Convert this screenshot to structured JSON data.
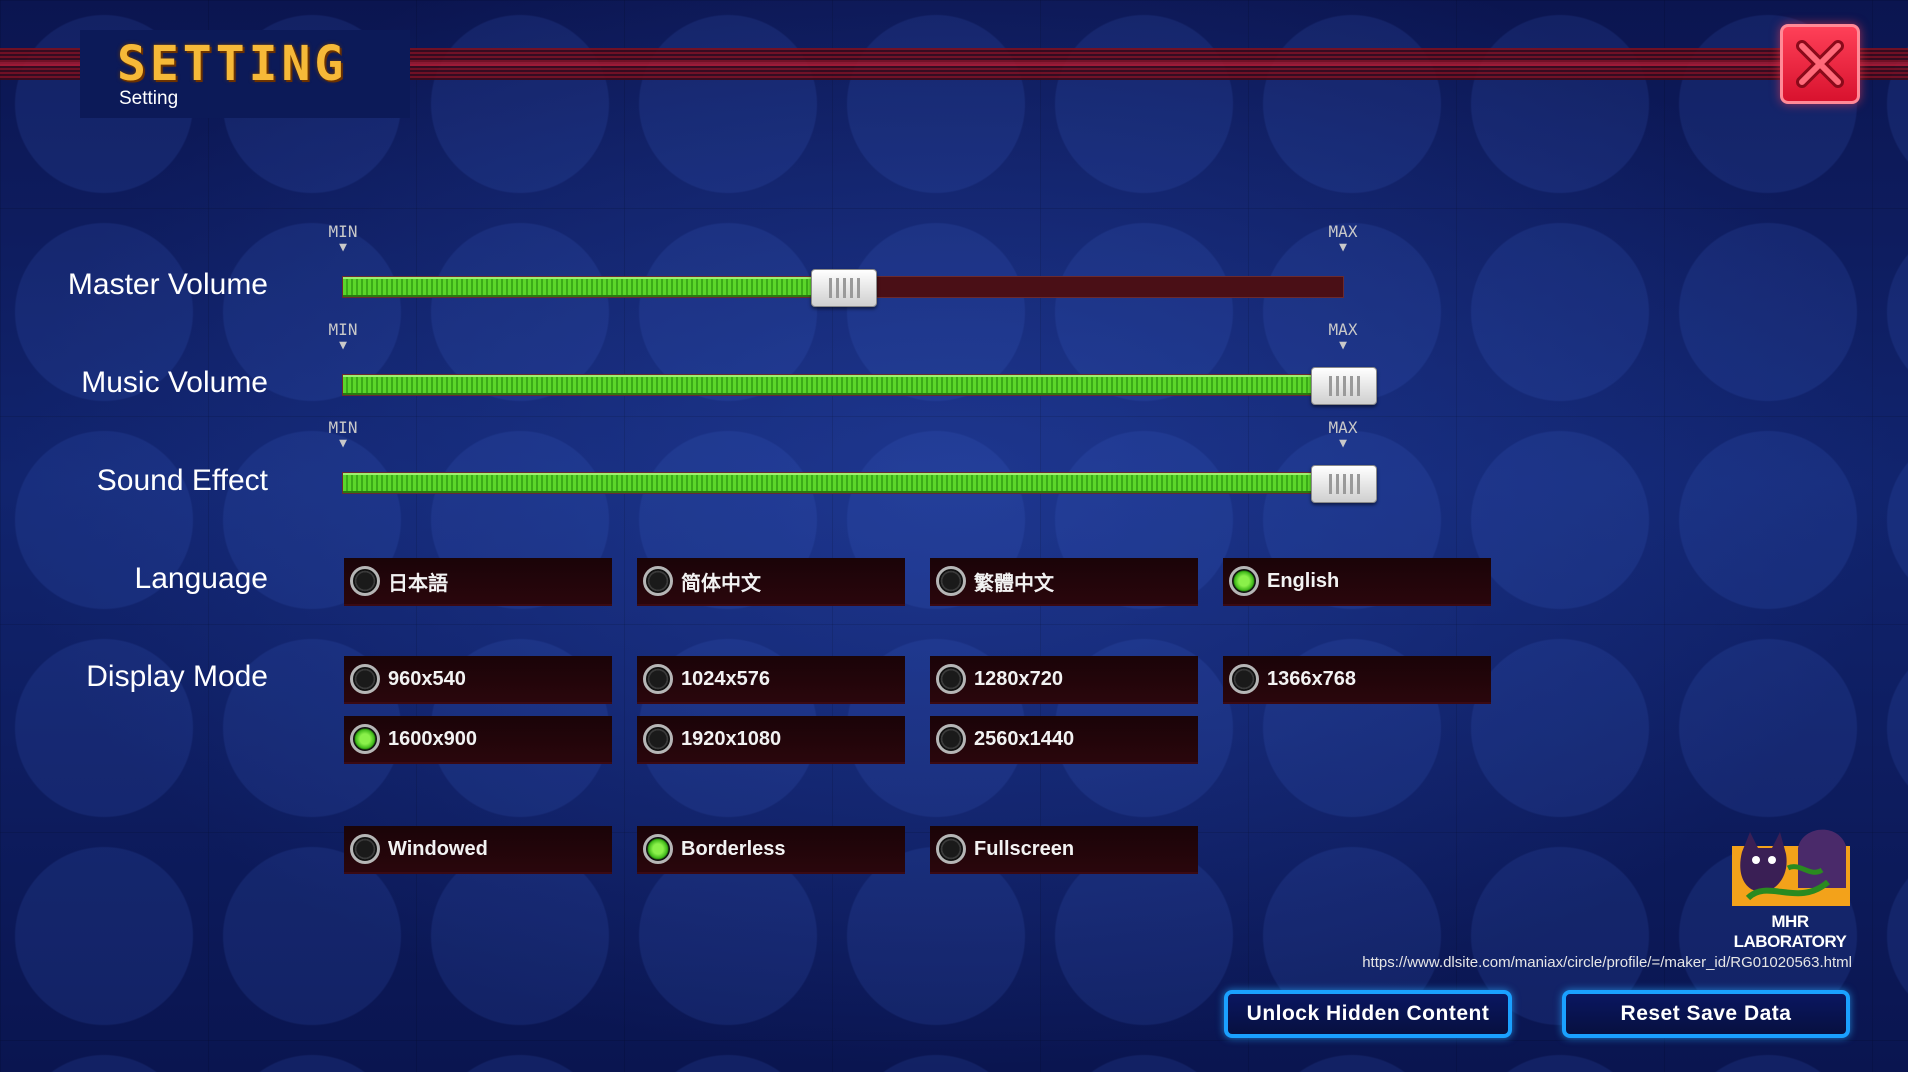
{
  "header": {
    "title": "SETTING",
    "subtitle": "Setting",
    "close_icon": "close-icon"
  },
  "sliders": [
    {
      "label": "Master Volume",
      "min_label": "MIN",
      "max_label": "MAX",
      "value": 0.5
    },
    {
      "label": "Music Volume",
      "min_label": "MIN",
      "max_label": "MAX",
      "value": 1.0
    },
    {
      "label": "Sound Effect",
      "min_label": "MIN",
      "max_label": "MAX",
      "value": 1.0
    }
  ],
  "language": {
    "label": "Language",
    "options": [
      {
        "label": "日本語",
        "selected": false
      },
      {
        "label": "简体中文",
        "selected": false
      },
      {
        "label": "繁體中文",
        "selected": false
      },
      {
        "label": "English",
        "selected": true
      }
    ]
  },
  "display_mode": {
    "label": "Display Mode",
    "resolutions": [
      {
        "label": "960x540",
        "selected": false
      },
      {
        "label": "1024x576",
        "selected": false
      },
      {
        "label": "1280x720",
        "selected": false
      },
      {
        "label": "1366x768",
        "selected": false
      },
      {
        "label": "1600x900",
        "selected": true
      },
      {
        "label": "1920x1080",
        "selected": false
      },
      {
        "label": "2560x1440",
        "selected": false
      }
    ],
    "window_modes": [
      {
        "label": "Windowed",
        "selected": false
      },
      {
        "label": "Borderless",
        "selected": true
      },
      {
        "label": "Fullscreen",
        "selected": false
      }
    ]
  },
  "footer": {
    "logo_name": "MHR LABORATORY",
    "url": "https://www.dlsite.com/maniax/circle/profile/=/maker_id/RG01020563.html",
    "unlock_button": "Unlock Hidden Content",
    "reset_button": "Reset Save Data"
  },
  "colors": {
    "accent_gold": "#f6b938",
    "slider_fill": "#4bc41f",
    "button_border": "#1aa0ff",
    "close_red": "#e8203a"
  }
}
